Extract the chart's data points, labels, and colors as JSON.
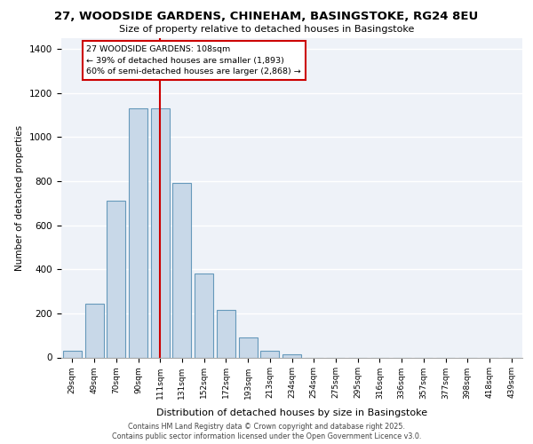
{
  "title1": "27, WOODSIDE GARDENS, CHINEHAM, BASINGSTOKE, RG24 8EU",
  "title2": "Size of property relative to detached houses in Basingstoke",
  "xlabel": "Distribution of detached houses by size in Basingstoke",
  "ylabel": "Number of detached properties",
  "categories": [
    "29sqm",
    "49sqm",
    "70sqm",
    "90sqm",
    "111sqm",
    "131sqm",
    "152sqm",
    "172sqm",
    "193sqm",
    "213sqm",
    "234sqm",
    "254sqm",
    "275sqm",
    "295sqm",
    "316sqm",
    "336sqm",
    "357sqm",
    "377sqm",
    "398sqm",
    "418sqm",
    "439sqm"
  ],
  "bar_heights": [
    30,
    245,
    710,
    1130,
    1130,
    790,
    380,
    215,
    90,
    30,
    15,
    0,
    0,
    0,
    0,
    0,
    0,
    0,
    0,
    0,
    0
  ],
  "property_label": "27 WOODSIDE GARDENS: 108sqm",
  "annotation_line1": "← 39% of detached houses are smaller (1,893)",
  "annotation_line2": "60% of semi-detached houses are larger (2,868) →",
  "vline_index": 4,
  "bar_color": "#c8d8e8",
  "bar_edge_color": "#6699bb",
  "vline_color": "#cc0000",
  "box_edge_color": "#cc0000",
  "background_color": "#eef2f8",
  "grid_color": "#ffffff",
  "footnote1": "Contains HM Land Registry data © Crown copyright and database right 2025.",
  "footnote2": "Contains public sector information licensed under the Open Government Licence v3.0.",
  "ylim": [
    0,
    1450
  ],
  "yticks": [
    0,
    200,
    400,
    600,
    800,
    1000,
    1200,
    1400
  ]
}
